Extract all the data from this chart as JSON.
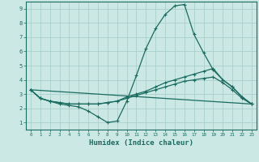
{
  "xlabel": "Humidex (Indice chaleur)",
  "bg_color": "#cce8e4",
  "grid_color": "#aacfca",
  "line_color": "#1a6b60",
  "xlim": [
    -0.5,
    23.5
  ],
  "ylim": [
    0.5,
    9.5
  ],
  "xticks": [
    0,
    1,
    2,
    3,
    4,
    5,
    6,
    7,
    8,
    9,
    10,
    11,
    12,
    13,
    14,
    15,
    16,
    17,
    18,
    19,
    20,
    21,
    22,
    23
  ],
  "yticks": [
    1,
    2,
    3,
    4,
    5,
    6,
    7,
    8,
    9
  ],
  "series": [
    {
      "x": [
        0,
        1,
        2,
        3,
        4,
        5,
        6,
        7,
        8,
        9,
        10,
        11,
        12,
        13,
        14,
        15,
        16,
        17,
        18,
        19,
        20,
        21,
        22,
        23
      ],
      "y": [
        3.3,
        2.7,
        2.5,
        2.3,
        2.2,
        2.1,
        1.8,
        1.4,
        1.0,
        1.1,
        2.5,
        4.3,
        6.2,
        7.6,
        8.6,
        9.2,
        9.3,
        7.2,
        5.9,
        4.7,
        4.0,
        3.5,
        2.8,
        2.3
      ]
    },
    {
      "x": [
        0,
        1,
        2,
        3,
        4,
        5,
        6,
        7,
        8,
        9,
        10,
        11,
        12,
        13,
        14,
        15,
        16,
        17,
        18,
        19,
        20,
        21,
        22,
        23
      ],
      "y": [
        3.3,
        2.7,
        2.5,
        2.4,
        2.3,
        2.3,
        2.3,
        2.3,
        2.4,
        2.5,
        2.8,
        3.0,
        3.2,
        3.5,
        3.8,
        4.0,
        4.2,
        4.4,
        4.6,
        4.8,
        4.0,
        3.5,
        2.8,
        2.3
      ]
    },
    {
      "x": [
        0,
        1,
        2,
        3,
        4,
        5,
        6,
        7,
        8,
        9,
        10,
        11,
        12,
        13,
        14,
        15,
        16,
        17,
        18,
        19,
        20,
        21,
        22,
        23
      ],
      "y": [
        3.3,
        2.7,
        2.5,
        2.4,
        2.3,
        2.3,
        2.3,
        2.3,
        2.4,
        2.5,
        2.7,
        2.9,
        3.1,
        3.3,
        3.5,
        3.7,
        3.9,
        4.0,
        4.1,
        4.2,
        3.8,
        3.3,
        2.7,
        2.3
      ]
    },
    {
      "x": [
        0,
        23
      ],
      "y": [
        3.3,
        2.3
      ]
    }
  ]
}
